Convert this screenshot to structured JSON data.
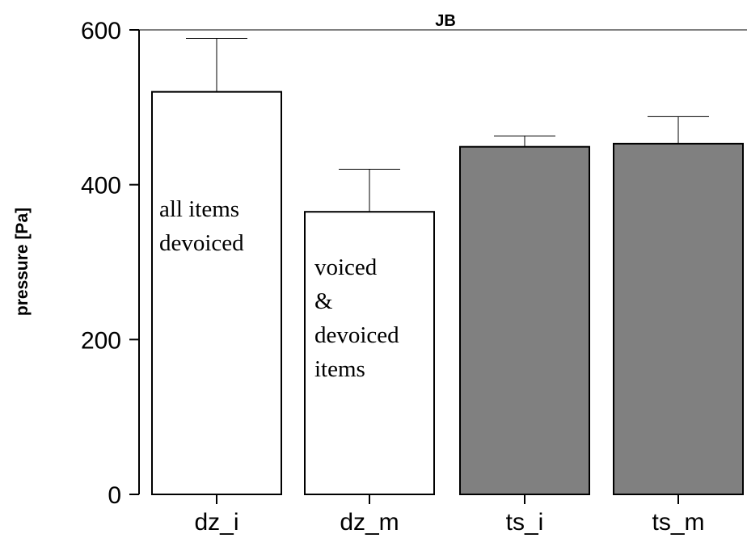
{
  "chart_data": {
    "type": "bar",
    "title": "JB",
    "xlabel": "",
    "ylabel": "pressure [Pa]",
    "ylim": [
      0,
      600
    ],
    "yticks": [
      "0",
      "200",
      "400",
      "600"
    ],
    "categories": [
      "dz_i",
      "dz_m",
      "ts_i",
      "ts_m"
    ],
    "values": [
      520,
      365,
      449,
      453
    ],
    "error_upper": [
      589,
      420,
      463,
      488
    ],
    "bar_fill": [
      "#ffffff",
      "#ffffff",
      "#808080",
      "#808080"
    ],
    "annotations": [
      {
        "bar": 0,
        "lines": [
          "all    items",
          "devoiced"
        ]
      },
      {
        "bar": 1,
        "lines": [
          "voiced",
          "&",
          "devoiced",
          "items"
        ]
      }
    ]
  }
}
